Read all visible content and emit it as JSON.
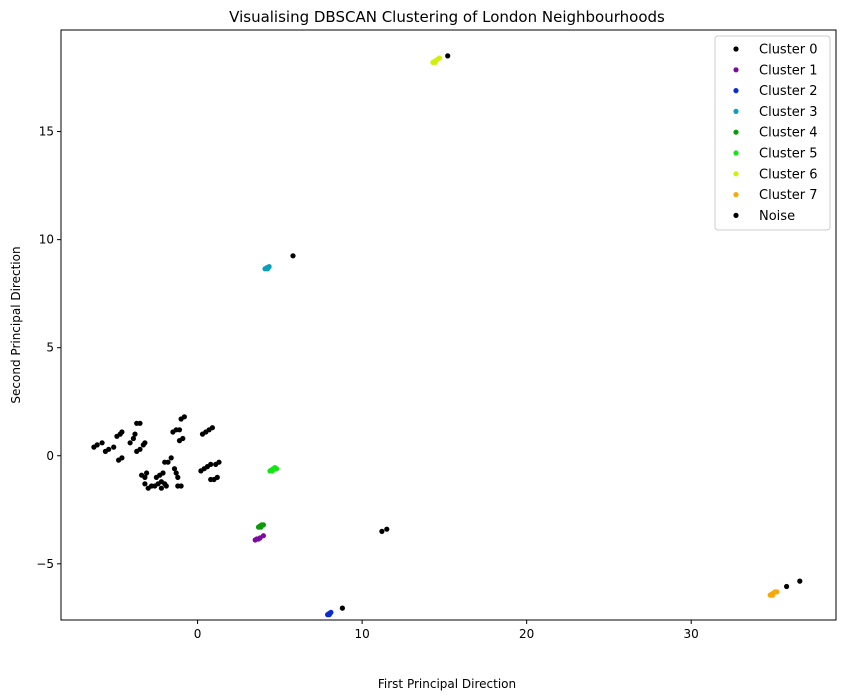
{
  "chart_data": {
    "type": "scatter",
    "title": "Visualising DBSCAN Clustering of London Neighbourhoods",
    "xlabel": "First Principal Direction",
    "ylabel": "Second Principal Direction",
    "xlim": [
      -8.3,
      38.8
    ],
    "ylim": [
      -7.6,
      19.7
    ],
    "xticks": [
      0,
      10,
      20,
      30
    ],
    "yticks": [
      -5,
      0,
      5,
      10,
      15
    ],
    "grid": false,
    "legend_position": "top-right",
    "series": [
      {
        "name": "Cluster 0",
        "color": "#000000",
        "points": [
          [
            -6.3,
            0.4
          ],
          [
            -6.1,
            0.5
          ],
          [
            -5.8,
            0.6
          ],
          [
            -5.6,
            0.2
          ],
          [
            -5.4,
            0.3
          ],
          [
            -5.1,
            0.4
          ],
          [
            -4.9,
            0.9
          ],
          [
            -4.7,
            1.0
          ],
          [
            -4.6,
            1.1
          ],
          [
            -4.8,
            -0.2
          ],
          [
            -4.6,
            -0.1
          ],
          [
            -4.1,
            0.6
          ],
          [
            -3.9,
            0.8
          ],
          [
            -3.8,
            1.0
          ],
          [
            -3.7,
            1.5
          ],
          [
            -3.5,
            1.5
          ],
          [
            -3.7,
            0.2
          ],
          [
            -3.5,
            0.3
          ],
          [
            -3.3,
            0.5
          ],
          [
            -3.2,
            0.6
          ],
          [
            -3.4,
            -0.9
          ],
          [
            -3.2,
            -1.0
          ],
          [
            -3.1,
            -0.8
          ],
          [
            -3.2,
            -1.3
          ],
          [
            -3.0,
            -1.5
          ],
          [
            -2.8,
            -1.4
          ],
          [
            -2.6,
            -1.4
          ],
          [
            -2.4,
            -1.3
          ],
          [
            -2.2,
            -1.2
          ],
          [
            -2.5,
            -1.0
          ],
          [
            -2.3,
            -0.9
          ],
          [
            -2.1,
            -0.8
          ],
          [
            -2.2,
            -1.5
          ],
          [
            -2.0,
            -1.3
          ],
          [
            -1.9,
            -1.4
          ],
          [
            -2.0,
            -0.3
          ],
          [
            -1.8,
            -0.3
          ],
          [
            -1.6,
            -0.1
          ],
          [
            -1.5,
            1.1
          ],
          [
            -1.3,
            1.2
          ],
          [
            -1.1,
            1.2
          ],
          [
            -1.3,
            -0.8
          ],
          [
            -1.2,
            -1.0
          ],
          [
            -1.4,
            -0.6
          ],
          [
            -1.2,
            -1.4
          ],
          [
            -1.0,
            -1.4
          ],
          [
            -1.1,
            0.7
          ],
          [
            -0.9,
            0.8
          ],
          [
            -1.0,
            1.7
          ],
          [
            -0.8,
            1.8
          ],
          [
            0.2,
            -0.7
          ],
          [
            0.4,
            -0.6
          ],
          [
            0.6,
            -0.5
          ],
          [
            0.8,
            -0.4
          ],
          [
            1.1,
            -0.4
          ],
          [
            0.3,
            1.0
          ],
          [
            0.5,
            1.1
          ],
          [
            0.7,
            1.2
          ],
          [
            0.9,
            1.3
          ],
          [
            0.8,
            -1.1
          ],
          [
            1.0,
            -1.1
          ],
          [
            1.2,
            -1.0
          ],
          [
            1.3,
            -0.3
          ]
        ]
      },
      {
        "name": "Cluster 1",
        "color": "#7a0aa0",
        "points": [
          [
            3.5,
            -3.9
          ],
          [
            3.6,
            -3.85
          ],
          [
            3.7,
            -3.85
          ],
          [
            3.8,
            -3.8
          ],
          [
            4.0,
            -3.7
          ]
        ]
      },
      {
        "name": "Cluster 2",
        "color": "#0a2cd0",
        "points": [
          [
            7.9,
            -7.35
          ],
          [
            8.0,
            -7.3
          ],
          [
            8.05,
            -7.3
          ],
          [
            8.1,
            -7.25
          ],
          [
            8.0,
            -7.35
          ]
        ]
      },
      {
        "name": "Cluster 3",
        "color": "#0aa0b8",
        "points": [
          [
            4.1,
            8.65
          ],
          [
            4.2,
            8.7
          ],
          [
            4.3,
            8.7
          ],
          [
            4.35,
            8.75
          ],
          [
            4.25,
            8.65
          ]
        ]
      },
      {
        "name": "Cluster 4",
        "color": "#0a9a0a",
        "points": [
          [
            3.7,
            -3.3
          ],
          [
            3.8,
            -3.25
          ],
          [
            3.9,
            -3.2
          ],
          [
            4.0,
            -3.2
          ],
          [
            3.85,
            -3.3
          ]
        ]
      },
      {
        "name": "Cluster 5",
        "color": "#14e614",
        "points": [
          [
            4.4,
            -0.7
          ],
          [
            4.5,
            -0.65
          ],
          [
            4.6,
            -0.6
          ],
          [
            4.7,
            -0.55
          ],
          [
            4.8,
            -0.6
          ],
          [
            4.55,
            -0.7
          ]
        ]
      },
      {
        "name": "Cluster 6",
        "color": "#d0f00a",
        "points": [
          [
            14.3,
            18.2
          ],
          [
            14.4,
            18.25
          ],
          [
            14.5,
            18.3
          ],
          [
            14.6,
            18.35
          ],
          [
            14.7,
            18.4
          ],
          [
            14.45,
            18.2
          ]
        ]
      },
      {
        "name": "Cluster 7",
        "color": "#f5a90a",
        "points": [
          [
            34.8,
            -6.45
          ],
          [
            34.9,
            -6.4
          ],
          [
            35.0,
            -6.35
          ],
          [
            35.1,
            -6.3
          ],
          [
            35.2,
            -6.3
          ],
          [
            34.95,
            -6.45
          ]
        ]
      },
      {
        "name": "Noise",
        "color": "#000000",
        "points": [
          [
            5.8,
            9.25
          ],
          [
            15.2,
            18.5
          ],
          [
            11.2,
            -3.5
          ],
          [
            11.5,
            -3.4
          ],
          [
            8.8,
            -7.05
          ],
          [
            35.8,
            -6.05
          ],
          [
            36.6,
            -5.8
          ]
        ]
      }
    ]
  }
}
